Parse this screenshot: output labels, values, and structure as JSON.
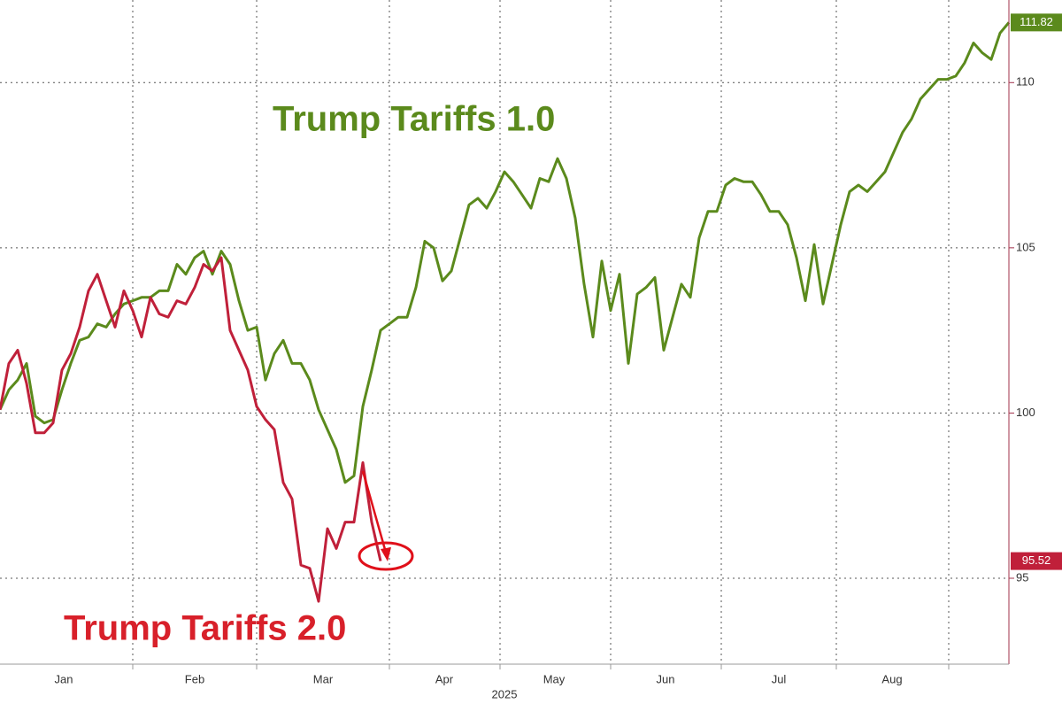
{
  "chart_data": {
    "type": "line",
    "annotations": [
      "Trump Tariffs 1.0",
      "Trump Tariffs 2.0"
    ],
    "xlabel": "2025",
    "xlim": [
      0,
      114
    ],
    "xticks": [
      {
        "value": 7.2,
        "label": "Jan"
      },
      {
        "value": 22,
        "label": "Feb"
      },
      {
        "value": 36.5,
        "label": "Mar"
      },
      {
        "value": 50.2,
        "label": "Apr"
      },
      {
        "value": 62.6,
        "label": "May"
      },
      {
        "value": 75.2,
        "label": "Jun"
      },
      {
        "value": 88,
        "label": "Jul"
      },
      {
        "value": 100.8,
        "label": "Aug"
      }
    ],
    "xgrid": [
      15,
      29,
      44,
      56.5,
      69,
      81.5,
      94.5,
      107.2
    ],
    "ylim": [
      92.4,
      112.5
    ],
    "yticks": [
      95,
      100,
      105,
      110
    ],
    "grid": true,
    "series": [
      {
        "name": "Trump Tariffs 1.0",
        "color": "#5b8a1c",
        "values": [
          100.1,
          100.7,
          101.0,
          101.5,
          99.9,
          99.7,
          99.8,
          100.7,
          101.5,
          102.2,
          102.3,
          102.7,
          102.6,
          103.0,
          103.3,
          103.4,
          103.5,
          103.5,
          103.7,
          103.7,
          104.5,
          104.2,
          104.7,
          104.9,
          104.2,
          104.9,
          104.5,
          103.4,
          102.5,
          102.6,
          101.0,
          101.8,
          102.2,
          101.5,
          101.5,
          101.0,
          100.1,
          99.5,
          98.9,
          97.9,
          98.1,
          100.2,
          101.3,
          102.5,
          102.7,
          102.9,
          102.9,
          103.8,
          105.2,
          105.0,
          104.0,
          104.3,
          105.3,
          106.3,
          106.5,
          106.2,
          106.7,
          107.3,
          107.0,
          106.6,
          106.2,
          107.1,
          107.0,
          107.7,
          107.1,
          105.9,
          103.9,
          102.3,
          104.6,
          103.1,
          104.2,
          101.5,
          103.6,
          103.8,
          104.1,
          101.9,
          102.9,
          103.9,
          103.5,
          105.3,
          106.1,
          106.1,
          106.9,
          107.1,
          107.0,
          107.0,
          106.6,
          106.1,
          106.1,
          105.7,
          104.7,
          103.4,
          105.1,
          103.3,
          104.5,
          105.7,
          106.7,
          106.9,
          106.7,
          107.0,
          107.3,
          107.9,
          108.5,
          108.9,
          109.5,
          109.8,
          110.1,
          110.1,
          110.2,
          110.6,
          111.2,
          110.9,
          110.7,
          111.5,
          111.82
        ]
      },
      {
        "name": "Trump Tariffs 2.0",
        "color": "#c0203a",
        "values": [
          100.1,
          101.5,
          101.9,
          100.9,
          99.4,
          99.4,
          99.7,
          101.3,
          101.8,
          102.6,
          103.7,
          104.2,
          103.4,
          102.6,
          103.7,
          103.1,
          102.3,
          103.5,
          103.0,
          102.9,
          103.4,
          103.3,
          103.8,
          104.5,
          104.3,
          104.7,
          102.5,
          101.9,
          101.3,
          100.2,
          99.8,
          99.5,
          97.9,
          97.4,
          95.4,
          95.3,
          94.3,
          96.5,
          95.9,
          96.7,
          96.7,
          98.5,
          96.7,
          95.52,
          null,
          null,
          null,
          null,
          null,
          null,
          null,
          null,
          null,
          null,
          null,
          null,
          null,
          null,
          null,
          null,
          null,
          null,
          null,
          null,
          null,
          null,
          null,
          null,
          null,
          null,
          null,
          null,
          null,
          null,
          null,
          null,
          null,
          null,
          null,
          null,
          null,
          null,
          null,
          null,
          null,
          null,
          null,
          null,
          null,
          null,
          null,
          null,
          null,
          null,
          null,
          null,
          null,
          null,
          null,
          null,
          null,
          null,
          null,
          null,
          null,
          null,
          null,
          null,
          null,
          null,
          null,
          null,
          null,
          null,
          null
        ]
      }
    ]
  }
}
